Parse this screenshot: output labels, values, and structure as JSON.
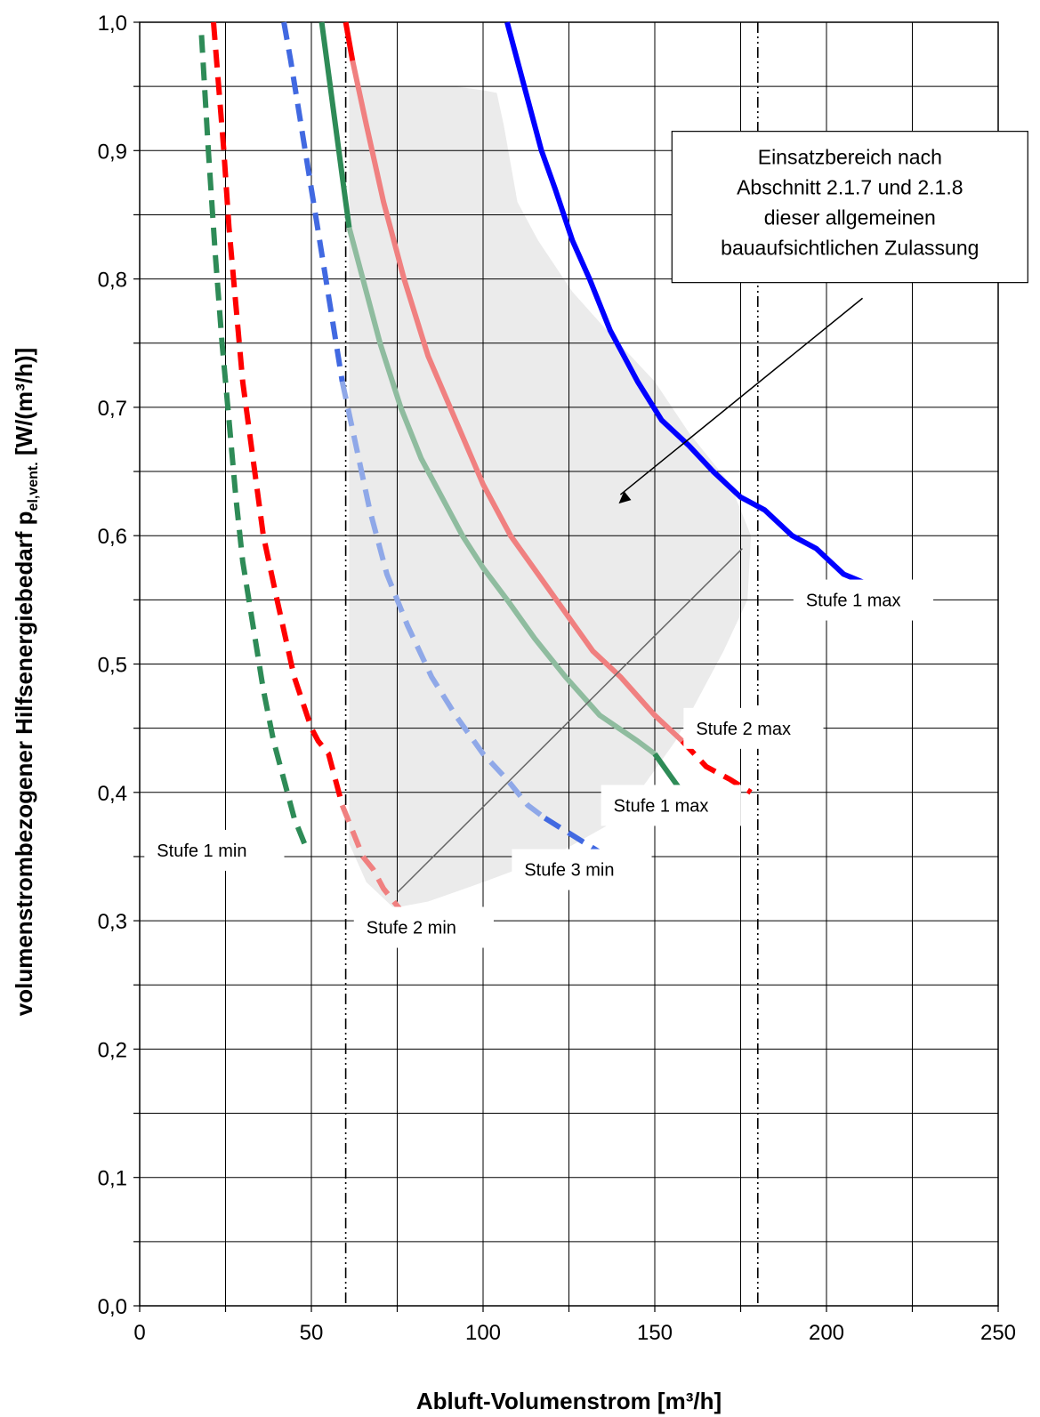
{
  "chart_data": {
    "type": "line",
    "xlabel": "Abluft-Volumenstrom [m³/h]",
    "ylabel_main": "volumenstrombezogener Hilfsenergiebedarf  p",
    "ylabel_sub": "el,vent.",
    "ylabel_unit": " [W/(m³/h)]",
    "xlim": [
      0,
      250
    ],
    "ylim": [
      0,
      1.0
    ],
    "x_ticks": [
      "0",
      "50",
      "100",
      "150",
      "200",
      "250"
    ],
    "y_ticks": [
      "0,0",
      "0,1",
      "0,2",
      "0,3",
      "0,4",
      "0,5",
      "0,6",
      "0,7",
      "0,8",
      "0,9",
      "1,0"
    ],
    "grid": true,
    "limit_lines_x": [
      60,
      180
    ],
    "annotation_lines": [
      "Einsatzbereich nach",
      "Abschnitt 2.1.7 und 2.1.8",
      "dieser allgemeinen",
      "bauaufsichtlichen Zulassung"
    ],
    "operating_region": {
      "x": [
        61,
        78,
        92,
        100,
        104,
        106,
        110,
        116,
        126,
        136,
        150,
        160,
        172,
        178,
        177,
        170,
        156,
        140,
        120,
        100,
        84,
        74,
        66,
        61,
        61
      ],
      "y": [
        0.95,
        0.95,
        0.95,
        0.947,
        0.945,
        0.92,
        0.86,
        0.83,
        0.79,
        0.76,
        0.72,
        0.68,
        0.64,
        0.6,
        0.55,
        0.51,
        0.44,
        0.38,
        0.35,
        0.33,
        0.315,
        0.31,
        0.33,
        0.36,
        0.95
      ]
    },
    "series": [
      {
        "color": "#2E8B57",
        "dash": true,
        "x": [
          18,
          20,
          22,
          24,
          26,
          28,
          30,
          33,
          36,
          39,
          42,
          45,
          48
        ],
        "y": [
          0.99,
          0.9,
          0.82,
          0.75,
          0.69,
          0.63,
          0.58,
          0.53,
          0.48,
          0.44,
          0.41,
          0.38,
          0.36
        ]
      },
      {
        "color": "#FF0000",
        "dash": true,
        "x": [
          21.5,
          23,
          24.5,
          26,
          28,
          30,
          33,
          36,
          40,
          45,
          50,
          52,
          55,
          57,
          59
        ],
        "y": [
          1.0,
          0.95,
          0.9,
          0.84,
          0.78,
          0.72,
          0.66,
          0.6,
          0.55,
          0.49,
          0.45,
          0.44,
          0.43,
          0.41,
          0.39
        ]
      },
      {
        "color": "#F08080",
        "dash": true,
        "x": [
          59,
          62,
          65,
          68,
          71,
          74,
          77,
          80
        ],
        "y": [
          0.39,
          0.37,
          0.35,
          0.34,
          0.325,
          0.315,
          0.305,
          0.295
        ]
      },
      {
        "color": "#4169E1",
        "dash": true,
        "x": [
          42,
          44,
          47,
          50,
          53,
          56,
          59
        ],
        "y": [
          1.0,
          0.97,
          0.92,
          0.87,
          0.82,
          0.77,
          0.72
        ]
      },
      {
        "color": "#8FA8E8",
        "dash": true,
        "x": [
          59,
          63,
          67,
          72,
          78,
          85,
          92,
          100,
          107,
          113,
          118
        ],
        "y": [
          0.72,
          0.67,
          0.62,
          0.57,
          0.53,
          0.49,
          0.46,
          0.43,
          0.41,
          0.39,
          0.38
        ]
      },
      {
        "color": "#4169E1",
        "dash": true,
        "x": [
          118,
          124,
          130,
          136
        ],
        "y": [
          0.38,
          0.37,
          0.36,
          0.35
        ]
      },
      {
        "color": "#2E8B57",
        "dash": false,
        "x": [
          53,
          55,
          57,
          59,
          61
        ],
        "y": [
          1.0,
          0.96,
          0.92,
          0.88,
          0.84
        ]
      },
      {
        "color": "#8FBC9F",
        "dash": false,
        "x": [
          61,
          65,
          70,
          76,
          82,
          88,
          94,
          100,
          107,
          115,
          124,
          134,
          145,
          150
        ],
        "y": [
          0.84,
          0.8,
          0.75,
          0.7,
          0.66,
          0.63,
          0.6,
          0.575,
          0.55,
          0.52,
          0.49,
          0.46,
          0.44,
          0.43
        ]
      },
      {
        "color": "#2E8B57",
        "dash": false,
        "x": [
          150,
          154,
          158
        ],
        "y": [
          0.43,
          0.415,
          0.4
        ]
      },
      {
        "color": "#FF0000",
        "dash": false,
        "x": [
          60,
          62
        ],
        "y": [
          1.0,
          0.97
        ]
      },
      {
        "color": "#F08080",
        "dash": false,
        "x": [
          62,
          66,
          71,
          77,
          84,
          92,
          100,
          108,
          116,
          124,
          132,
          140,
          150,
          158
        ],
        "y": [
          0.97,
          0.92,
          0.86,
          0.8,
          0.74,
          0.69,
          0.64,
          0.6,
          0.57,
          0.54,
          0.51,
          0.49,
          0.46,
          0.44
        ]
      },
      {
        "color": "#FF0000",
        "dash": true,
        "x": [
          158,
          165,
          172,
          178
        ],
        "y": [
          0.44,
          0.42,
          0.41,
          0.4
        ]
      },
      {
        "color": "#0000FF",
        "dash": false,
        "x": [
          107,
          112,
          117,
          121,
          126,
          131,
          137,
          145,
          152,
          160,
          167,
          175,
          182,
          190,
          197,
          205,
          214
        ],
        "y": [
          1.0,
          0.95,
          0.9,
          0.87,
          0.83,
          0.8,
          0.76,
          0.72,
          0.69,
          0.67,
          0.65,
          0.63,
          0.62,
          0.6,
          0.59,
          0.57,
          0.56
        ]
      }
    ],
    "curve_labels": [
      {
        "text": "Stufe 1 max",
        "x": 194,
        "y": 0.545
      },
      {
        "text": "Stufe 2 max",
        "x": 162,
        "y": 0.445
      },
      {
        "text": "Stufe 1 max",
        "x": 138,
        "y": 0.385
      },
      {
        "text": "Stufe 3 min",
        "x": 112,
        "y": 0.335
      },
      {
        "text": "Stufe 1 min",
        "x": 5,
        "y": 0.35
      },
      {
        "text": "Stufe 2 min",
        "x": 66,
        "y": 0.29
      }
    ]
  }
}
